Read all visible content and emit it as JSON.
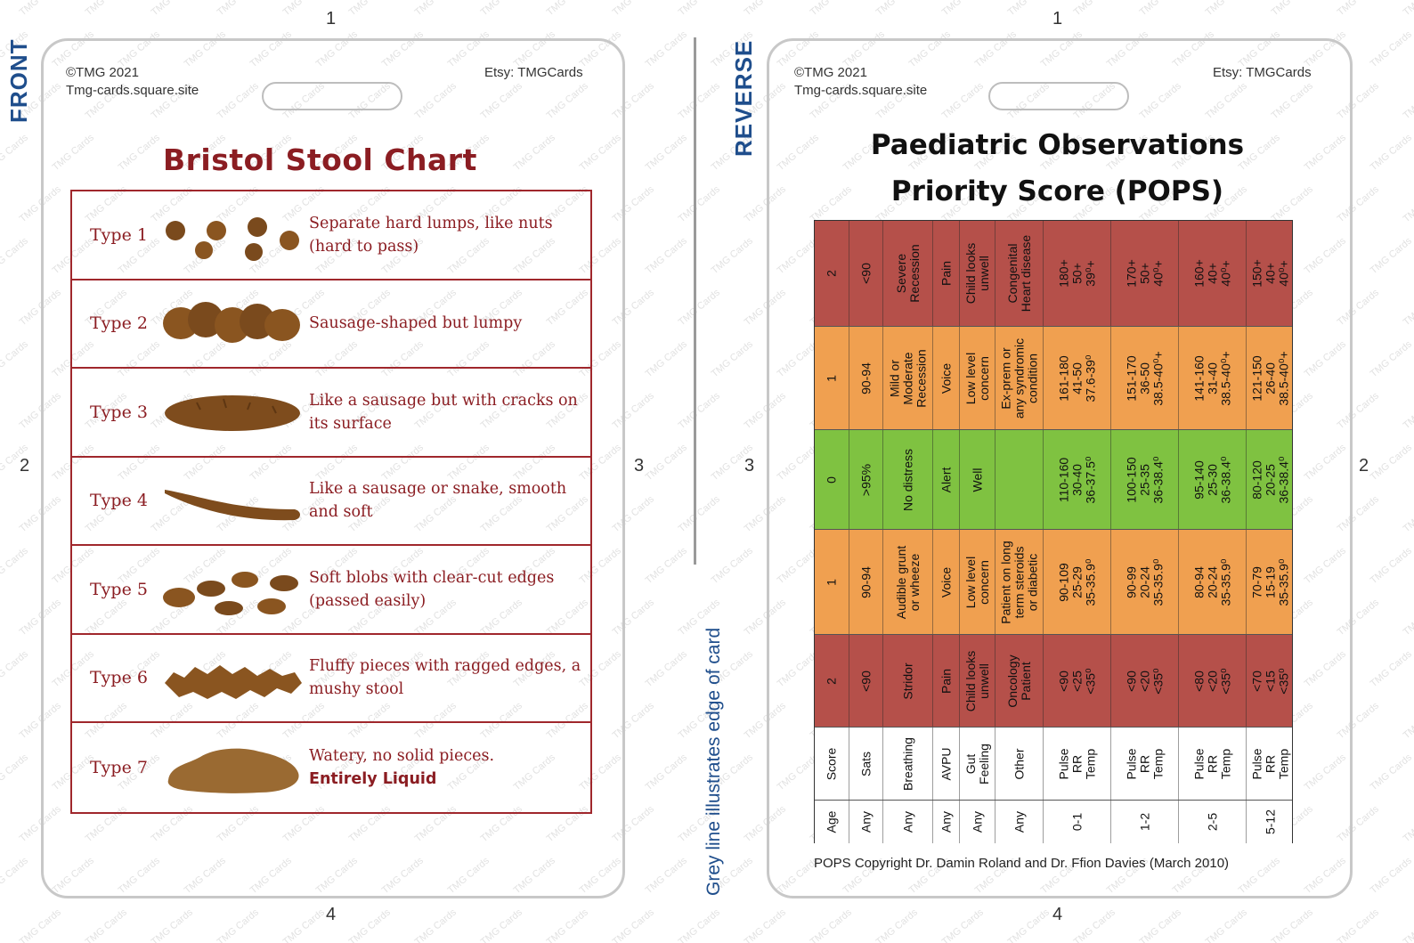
{
  "edge_numbers": {
    "top_left": "1",
    "top_right": "1",
    "mid_left_outer": "2",
    "mid_left_inner": "3",
    "mid_right_inner": "3",
    "mid_right_outer": "2",
    "bottom_left": "4",
    "bottom_right": "4"
  },
  "watermark": "TMG Cards",
  "front": {
    "side_label": "FRONT",
    "copyright": "©TMG 2021",
    "site": "Tmg-cards.square.site",
    "etsy": "Etsy: TMGCards",
    "title": "Bristol Stool Chart",
    "types": [
      {
        "label": "Type 1",
        "line1": "Separate hard lumps, like nuts",
        "line2": "(hard to pass)"
      },
      {
        "label": "Type 2",
        "line1": "Sausage-shaped but lumpy",
        "line2": ""
      },
      {
        "label": "Type 3",
        "line1": "Like a sausage but with cracks on",
        "line2": "its surface"
      },
      {
        "label": "Type 4",
        "line1": "Like a sausage or snake, smooth",
        "line2": "and soft"
      },
      {
        "label": "Type 5",
        "line1": "Soft blobs with clear-cut edges",
        "line2": "(passed easily)"
      },
      {
        "label": "Type 6",
        "line1": "Fluffy pieces with ragged edges, a",
        "line2": "mushy stool"
      },
      {
        "label": "Type 7",
        "line1": "Watery, no solid pieces.",
        "line2": "Entirely Liquid"
      }
    ]
  },
  "grey_caption": "Grey line illustrates edge of card",
  "reverse": {
    "side_label": "REVERSE",
    "copyright": "©TMG 2021",
    "site": "Tmg-cards.square.site",
    "etsy": "Etsy: TMGCards",
    "title_line1": "Paediatric Observations",
    "title_line2": "Priority Score (POPS)",
    "footer": "POPS Copyright Dr. Damin Roland and Dr. Ffion Davies (March 2010)",
    "colors": {
      "red": "#b5504a",
      "orange": "#f0a050",
      "green": "#7fc241",
      "white": "#ffffff"
    },
    "bands": [
      {
        "color": "red",
        "cells": [
          "2",
          "<90",
          "Severe\nRecession",
          "Pain",
          "Child looks\nunwell",
          "Congenital\nHeart disease",
          "180+\n50+\n39⁰+",
          "170+\n50+\n40⁰+",
          "160+\n40+\n40⁰+",
          "150+\n40+\n40⁰+"
        ]
      },
      {
        "color": "orange",
        "cells": [
          "1",
          "90-94",
          "Mild or\nModerate\nRecession",
          "Voice",
          "Low level\nconcern",
          "Ex-prem or\nany syndromic\ncondition",
          "161-180\n41-50\n37.6-39⁰",
          "151-170\n36-50\n38.5-40⁰+",
          "141-160\n31-40\n38.5-40⁰+",
          "121-150\n26-40\n38.5-40⁰+"
        ]
      },
      {
        "color": "green",
        "cells": [
          "0",
          ">95%",
          "No distress",
          "Alert",
          "Well",
          "",
          "110-160\n30-40\n36-37.5⁰",
          "100-150\n25-35\n36-38.4⁰",
          "95-140\n25-30\n36-38.4⁰",
          "80-120\n20-25\n36-38.4⁰"
        ]
      },
      {
        "color": "orange",
        "cells": [
          "1",
          "90-94",
          "Audible grunt\nor wheeze",
          "Voice",
          "Low level\nconcern",
          "Patient on long\nterm steroids\nor diabetic",
          "90-109\n25-29\n35-35.9⁰",
          "90-99\n20-24\n35-35.9⁰",
          "80-94\n20-24\n35-35.9⁰",
          "70-79\n15-19\n35-35.9⁰"
        ]
      },
      {
        "color": "red",
        "cells": [
          "2",
          "<90",
          "Stridor",
          "Pain",
          "Child looks\nunwell",
          "Oncology\nPatient",
          "<90\n<25\n<35⁰",
          "<90\n<20\n<35⁰",
          "<80\n<20\n<35⁰",
          "<70\n<15\n<35⁰"
        ]
      },
      {
        "color": "white",
        "cells": [
          "Score",
          "Sats",
          "Breathing",
          "AVPU",
          "Gut\nFeeling",
          "Other",
          "Pulse\nRR\nTemp",
          "Pulse\nRR\nTemp",
          "Pulse\nRR\nTemp",
          "Pulse\nRR\nTemp"
        ]
      },
      {
        "color": "white",
        "cells": [
          "Age",
          "Any",
          "Any",
          "Any",
          "Any",
          "Any",
          "0-1",
          "1-2",
          "2-5",
          "5-12"
        ]
      }
    ]
  }
}
